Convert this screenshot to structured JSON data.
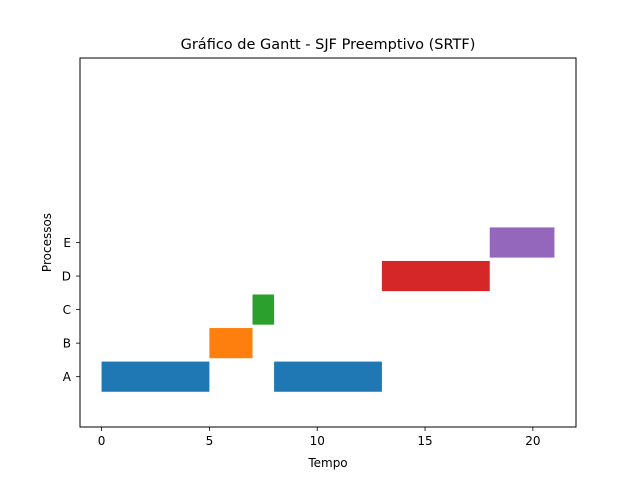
{
  "chart_data": {
    "type": "bar",
    "orientation": "horizontal",
    "title": "Gráfico de Gantt - SJF Preemptivo (SRTF)",
    "xlabel": "Tempo",
    "ylabel": "Processos",
    "xlim": [
      -1,
      22
    ],
    "ylim": [
      -1.5,
      9.5
    ],
    "x_ticks": [
      0,
      5,
      10,
      15,
      20
    ],
    "categories": [
      "A",
      "B",
      "C",
      "D",
      "E"
    ],
    "grid": false,
    "legend": "none",
    "segments": [
      {
        "process": "A",
        "start": 0,
        "end": 5,
        "color": "#1f77b4"
      },
      {
        "process": "B",
        "start": 5,
        "end": 7,
        "color": "#ff7f0e"
      },
      {
        "process": "C",
        "start": 7,
        "end": 8,
        "color": "#2ca02c"
      },
      {
        "process": "A",
        "start": 8,
        "end": 13,
        "color": "#1f77b4"
      },
      {
        "process": "D",
        "start": 13,
        "end": 18,
        "color": "#d62728"
      },
      {
        "process": "E",
        "start": 18,
        "end": 21,
        "color": "#9467bd"
      }
    ]
  }
}
